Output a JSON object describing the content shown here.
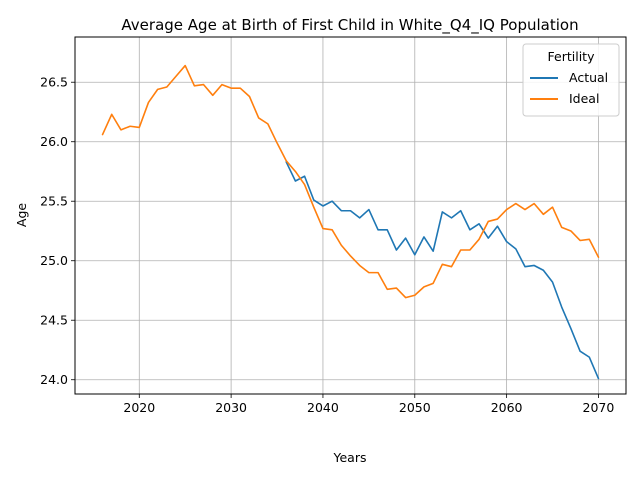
{
  "chart_data": {
    "type": "line",
    "title": "Average Age at Birth of First Child in White_Q4_IQ Population",
    "xlabel": "Years",
    "ylabel": "Age",
    "xlim": [
      2013,
      2073
    ],
    "ylim": [
      23.88,
      26.88
    ],
    "xticks": [
      2020,
      2030,
      2040,
      2050,
      2060,
      2070
    ],
    "yticks": [
      24.0,
      24.5,
      25.0,
      25.5,
      26.0,
      26.5
    ],
    "xtick_labels": [
      "2020",
      "2030",
      "2040",
      "2050",
      "2060",
      "2070"
    ],
    "ytick_labels": [
      "24.0",
      "24.5",
      "25.0",
      "25.5",
      "26.0",
      "26.5"
    ],
    "grid": true,
    "legend": {
      "title": "Fertility",
      "placement": "top-right"
    },
    "series": [
      {
        "name": "Actual",
        "color": "#1f77b4",
        "x": [
          2036,
          2037,
          2038,
          2039,
          2040,
          2041,
          2042,
          2043,
          2044,
          2045,
          2046,
          2047,
          2048,
          2049,
          2050,
          2051,
          2052,
          2053,
          2054,
          2055,
          2056,
          2057,
          2058,
          2059,
          2060,
          2061,
          2062,
          2063,
          2064,
          2065,
          2066,
          2067,
          2068,
          2069,
          2070
        ],
        "y": [
          25.83,
          25.67,
          25.71,
          25.51,
          25.46,
          25.5,
          25.42,
          25.42,
          25.36,
          25.43,
          25.26,
          25.26,
          25.09,
          25.19,
          25.05,
          25.2,
          25.08,
          25.41,
          25.36,
          25.42,
          25.26,
          25.31,
          25.19,
          25.29,
          25.16,
          25.1,
          24.95,
          24.96,
          24.92,
          24.82,
          24.61,
          24.43,
          24.24,
          24.19,
          24.01
        ]
      },
      {
        "name": "Ideal",
        "color": "#ff7f0e",
        "x": [
          2016,
          2017,
          2018,
          2019,
          2020,
          2021,
          2022,
          2023,
          2024,
          2025,
          2026,
          2027,
          2028,
          2029,
          2030,
          2031,
          2032,
          2033,
          2034,
          2035,
          2036,
          2037,
          2038,
          2039,
          2040,
          2041,
          2042,
          2043,
          2044,
          2045,
          2046,
          2047,
          2048,
          2049,
          2050,
          2051,
          2052,
          2053,
          2054,
          2055,
          2056,
          2057,
          2058,
          2059,
          2060,
          2061,
          2062,
          2063,
          2064,
          2065,
          2066,
          2067,
          2068,
          2069,
          2070
        ],
        "y": [
          26.06,
          26.23,
          26.1,
          26.13,
          26.12,
          26.33,
          26.44,
          26.46,
          26.55,
          26.64,
          26.47,
          26.48,
          26.39,
          26.48,
          26.45,
          26.45,
          26.38,
          26.2,
          26.15,
          25.99,
          25.84,
          25.75,
          25.64,
          25.45,
          25.27,
          25.26,
          25.13,
          25.04,
          24.96,
          24.9,
          24.9,
          24.76,
          24.77,
          24.69,
          24.71,
          24.78,
          24.81,
          24.97,
          24.95,
          25.09,
          25.09,
          25.18,
          25.33,
          25.35,
          25.43,
          25.48,
          25.43,
          25.48,
          25.39,
          25.45,
          25.28,
          25.25,
          25.17,
          25.18,
          25.03
        ]
      }
    ]
  }
}
